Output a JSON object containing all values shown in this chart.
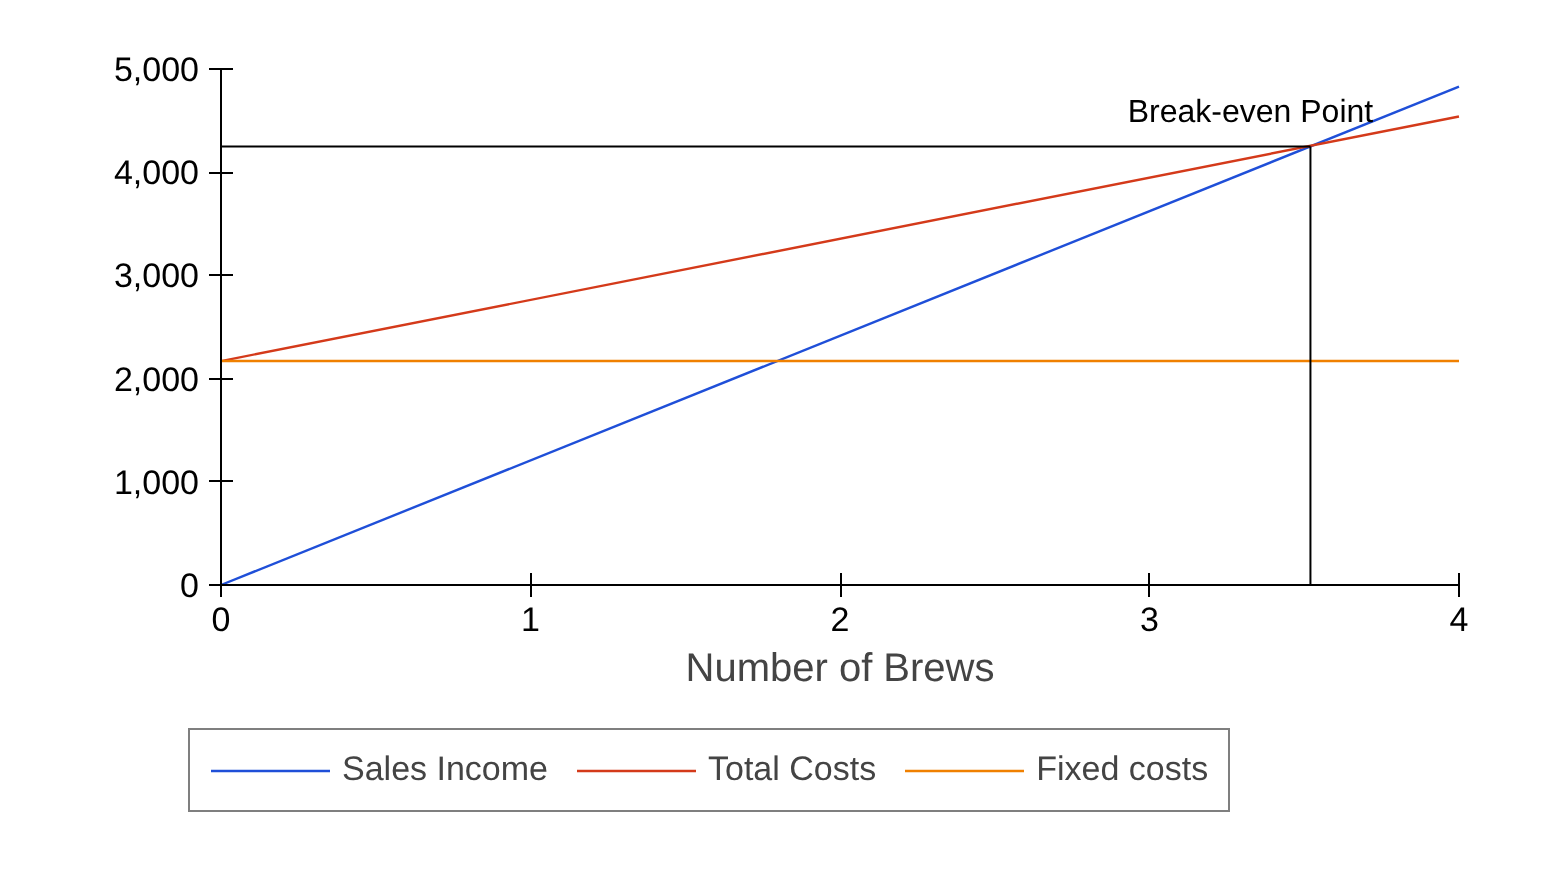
{
  "chart_data": {
    "type": "line",
    "xlabel": "Number of Brews",
    "x": [
      0,
      4
    ],
    "series": [
      {
        "name": "Sales Income",
        "color": "#1f4fd8",
        "values": [
          0,
          4830
        ]
      },
      {
        "name": "Total Costs",
        "color": "#d43a1a",
        "values": [
          2170,
          4540
        ]
      },
      {
        "name": "Fixed costs",
        "color": "#f08000",
        "values": [
          2170,
          2170
        ]
      }
    ],
    "xlim": [
      0,
      4
    ],
    "xticks": [
      0,
      1,
      2,
      3,
      4
    ],
    "ylim": [
      0,
      5000
    ],
    "yticks": [
      0,
      {
        "value": 1000,
        "label": "1,000"
      },
      {
        "value": 2000,
        "label": "2,000"
      },
      {
        "value": 3000,
        "label": "3,000"
      },
      {
        "value": 4000,
        "label": "4,000"
      },
      {
        "value": 5000,
        "label": "5,000"
      }
    ],
    "ref_lines": [
      {
        "axis": "x",
        "value": 3.52,
        "color": "#000000"
      },
      {
        "axis": "y",
        "value": 4250,
        "color": "#000000"
      }
    ],
    "annotations": [
      {
        "text": "Break-even Point",
        "x": 3.52,
        "y": 4250
      }
    ],
    "grid": false,
    "legend": "bottom",
    "marker": "none",
    "line_style": "solid"
  }
}
